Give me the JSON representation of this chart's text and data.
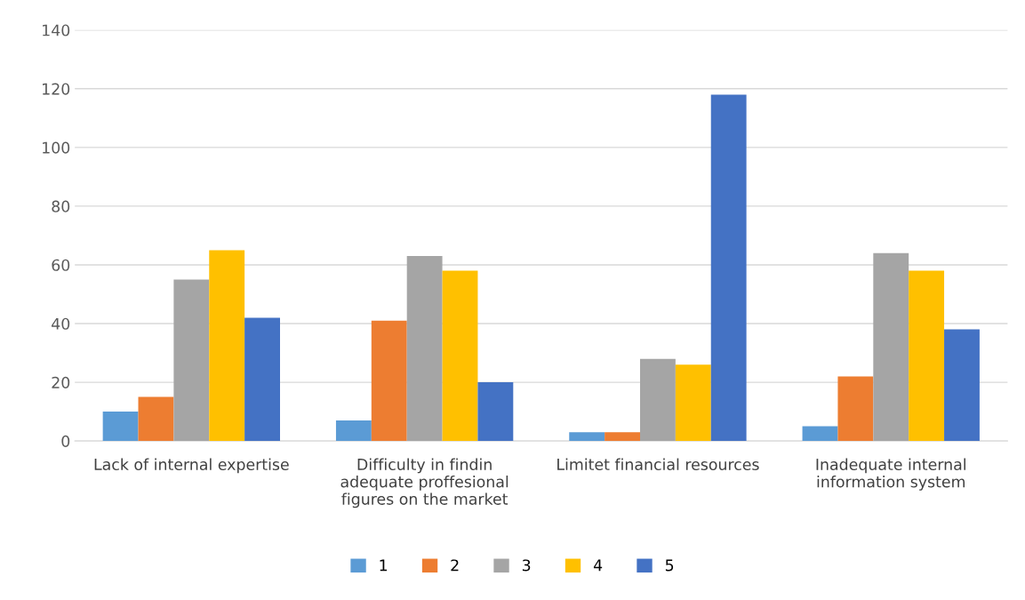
{
  "chart_data": {
    "type": "bar",
    "categories": [
      "Lack of internal expertise",
      "Difficulty in findin\nadequate proffesional\nfigures on the market",
      "Limitet financial resources",
      "Inadequate internal\ninformation system"
    ],
    "series": [
      {
        "name": "1",
        "color": "#5b9bd5",
        "values": [
          10,
          7,
          3,
          5
        ]
      },
      {
        "name": "2",
        "color": "#ed7d31",
        "values": [
          15,
          41,
          3,
          22
        ]
      },
      {
        "name": "3",
        "color": "#a5a5a5",
        "values": [
          55,
          63,
          28,
          64
        ]
      },
      {
        "name": "4",
        "color": "#ffc000",
        "values": [
          65,
          58,
          26,
          58
        ]
      },
      {
        "name": "5",
        "color": "#4472c4",
        "values": [
          42,
          20,
          118,
          38
        ]
      }
    ],
    "ylim": [
      0,
      140
    ],
    "yticks": [
      0,
      20,
      40,
      60,
      80,
      100,
      120,
      140
    ],
    "grid": "y",
    "legend": "bottom"
  }
}
